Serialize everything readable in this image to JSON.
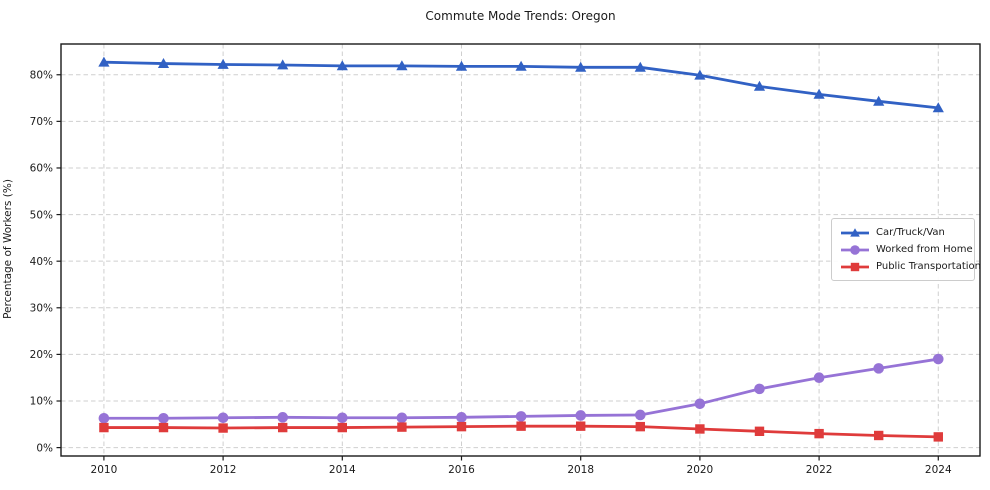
{
  "chart_data": {
    "type": "line",
    "title": "Commute Mode Trends: Oregon",
    "xlabel": "",
    "ylabel": "Percentage of Workers (%)",
    "x": [
      2010,
      2011,
      2012,
      2013,
      2014,
      2015,
      2016,
      2017,
      2018,
      2019,
      2020,
      2021,
      2022,
      2023,
      2024
    ],
    "series": [
      {
        "name": "Car/Truck/Van",
        "color": "#3161c4",
        "marker": "triangle",
        "values": [
          82.7,
          82.4,
          82.2,
          82.1,
          81.9,
          81.9,
          81.8,
          81.8,
          81.6,
          81.6,
          79.9,
          77.5,
          75.8,
          74.3,
          72.9
        ]
      },
      {
        "name": "Worked from Home",
        "color": "#9673d6",
        "marker": "circle",
        "values": [
          6.3,
          6.3,
          6.4,
          6.5,
          6.4,
          6.4,
          6.5,
          6.7,
          6.9,
          7.0,
          9.4,
          12.6,
          15.0,
          17.0,
          19.0
        ]
      },
      {
        "name": "Public Transportation",
        "color": "#df3b3b",
        "marker": "square",
        "values": [
          4.3,
          4.3,
          4.2,
          4.3,
          4.3,
          4.4,
          4.5,
          4.6,
          4.6,
          4.5,
          4.0,
          3.5,
          3.0,
          2.6,
          2.3
        ]
      }
    ],
    "xticks": [
      2010,
      2012,
      2014,
      2016,
      2018,
      2020,
      2022,
      2024
    ],
    "yticks": [
      0,
      10,
      20,
      30,
      40,
      50,
      60,
      70,
      80
    ],
    "ytick_suffix": "%",
    "xlim": [
      2009.28,
      2024.7
    ],
    "ylim": [
      -1.8,
      86.6
    ],
    "grid": true,
    "grid_color": "#cfcfcf",
    "spine_color": "#1a1a1a",
    "legend_position": "center right"
  }
}
